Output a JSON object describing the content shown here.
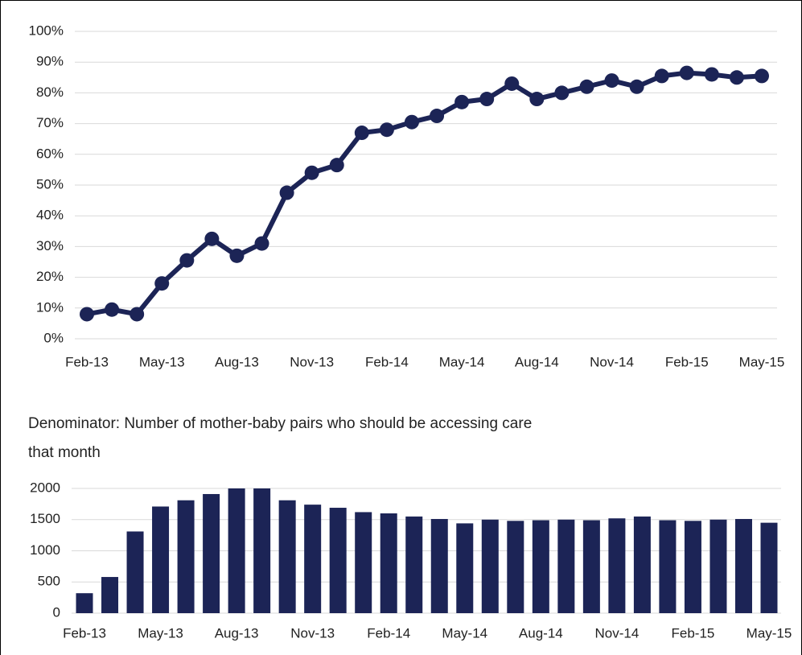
{
  "chart_data": [
    {
      "type": "line",
      "categories": [
        "Feb-13",
        null,
        null,
        "May-13",
        null,
        null,
        "Aug-13",
        null,
        null,
        "Nov-13",
        null,
        null,
        "Feb-14",
        null,
        null,
        "May-14",
        null,
        null,
        "Aug-14",
        null,
        null,
        "Nov-14",
        null,
        null,
        "Feb-15",
        null,
        null,
        "May-15"
      ],
      "values": [
        8,
        9.5,
        8,
        18,
        25.5,
        32.5,
        27,
        31,
        47.5,
        54,
        56.5,
        67,
        68,
        70.5,
        72.5,
        77,
        78,
        83,
        78,
        80,
        82,
        84,
        82,
        85.5,
        86.5,
        86,
        85,
        85.5
      ],
      "color": "#1c2456",
      "ylim": [
        0,
        100
      ],
      "yticks": [
        {
          "value": 0,
          "label": "0%"
        },
        {
          "value": 10,
          "label": "10%"
        },
        {
          "value": 20,
          "label": "20%"
        },
        {
          "value": 30,
          "label": "30%"
        },
        {
          "value": 40,
          "label": "40%"
        },
        {
          "value": 50,
          "label": "50%"
        },
        {
          "value": 60,
          "label": "60%"
        },
        {
          "value": 70,
          "label": "70%"
        },
        {
          "value": 80,
          "label": "80%"
        },
        {
          "value": 90,
          "label": "90%"
        },
        {
          "value": 100,
          "label": "100%"
        }
      ],
      "grid": true
    },
    {
      "type": "bar",
      "title": "Denominator: Number of mother-baby pairs who should be accessing care that month",
      "categories": [
        "Feb-13",
        null,
        null,
        "May-13",
        null,
        null,
        "Aug-13",
        null,
        null,
        "Nov-13",
        null,
        null,
        "Feb-14",
        null,
        null,
        "May-14",
        null,
        null,
        "Aug-14",
        null,
        null,
        "Nov-14",
        null,
        null,
        "Feb-15",
        null,
        null,
        "May-15"
      ],
      "values": [
        320,
        580,
        1310,
        1710,
        1810,
        1910,
        2000,
        2000,
        1810,
        1740,
        1690,
        1620,
        1600,
        1550,
        1510,
        1440,
        1500,
        1480,
        1490,
        1500,
        1490,
        1520,
        1550,
        1490,
        1480,
        1500,
        1510,
        1450
      ],
      "color": "#1c2456",
      "ylim": [
        0,
        2000
      ],
      "yticks": [
        0,
        500,
        1000,
        1500,
        2000
      ],
      "grid": true
    }
  ]
}
